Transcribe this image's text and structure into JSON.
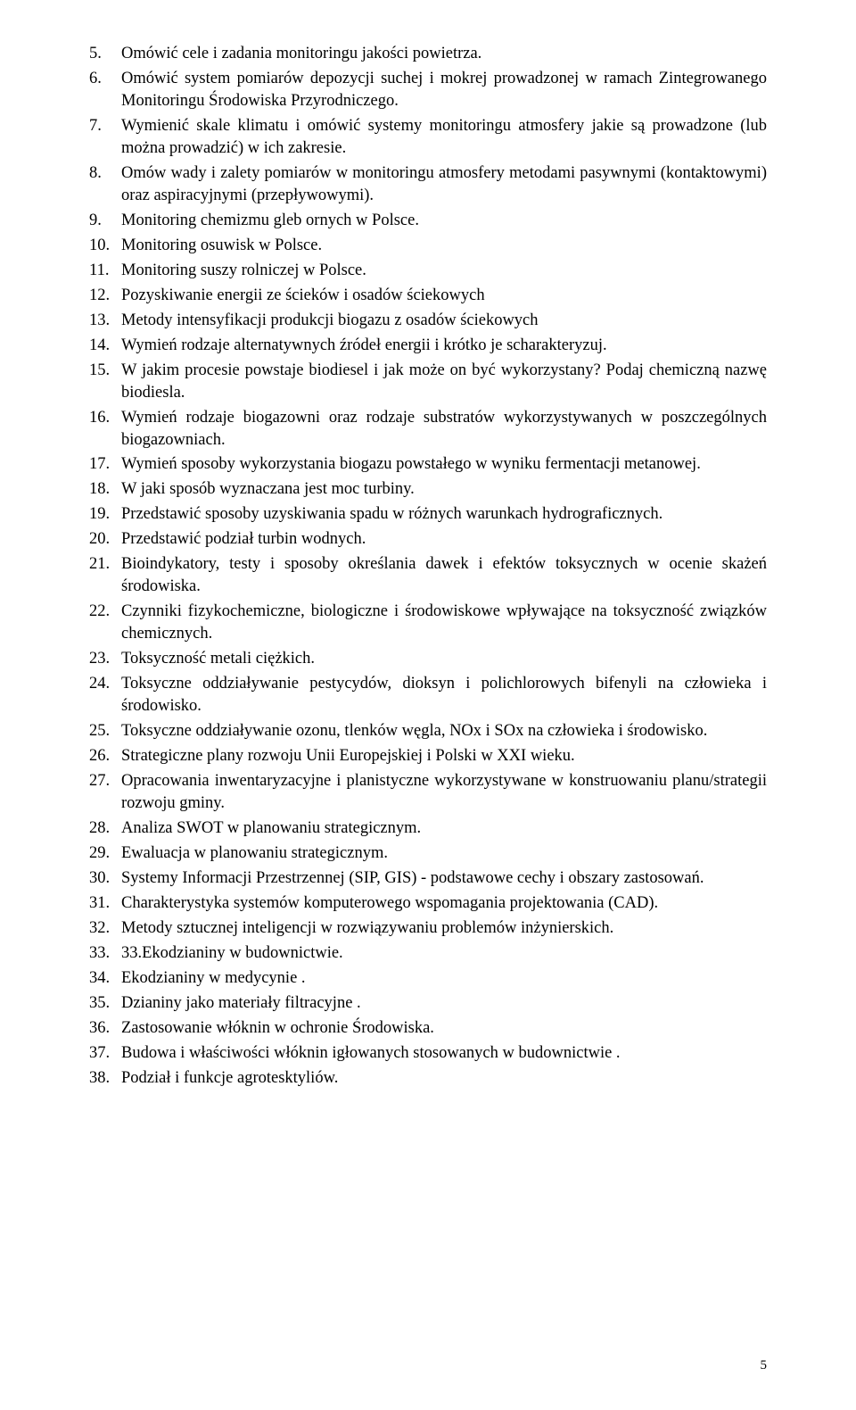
{
  "page_number": "5",
  "text_color": "#000000",
  "bg_color": "#ffffff",
  "font_family": "Times New Roman",
  "base_font_size_pt": 14,
  "items": [
    "Omówić cele i zadania monitoringu jakości powietrza.",
    "Omówić system pomiarów depozycji suchej i mokrej prowadzonej w ramach Zintegrowanego Monitoringu Środowiska Przyrodniczego.",
    "Wymienić skale klimatu i omówić systemy monitoringu atmosfery jakie są prowadzone (lub można prowadzić) w ich zakresie.",
    "Omów wady i zalety pomiarów w monitoringu atmosfery metodami pasywnymi (kontaktowymi) oraz aspiracyjnymi (przepływowymi).",
    "Monitoring chemizmu gleb ornych w Polsce.",
    "Monitoring osuwisk w Polsce.",
    "Monitoring suszy rolniczej w Polsce.",
    "Pozyskiwanie energii ze ścieków i osadów ściekowych",
    "Metody intensyfikacji produkcji biogazu z osadów ściekowych",
    "Wymień rodzaje alternatywnych źródeł energii i krótko je scharakteryzuj.",
    "W jakim procesie powstaje biodiesel i jak może on być wykorzystany? Podaj chemiczną nazwę biodiesla.",
    "Wymień rodzaje biogazowni oraz rodzaje substratów wykorzystywanych w poszczególnych biogazowniach.",
    "Wymień sposoby wykorzystania biogazu powstałego w wyniku fermentacji metanowej.",
    "W jaki sposób wyznaczana jest moc turbiny.",
    "Przedstawić sposoby uzyskiwania spadu w różnych warunkach hydrograficznych.",
    "Przedstawić podział turbin wodnych.",
    "Bioindykatory, testy i sposoby określania dawek i efektów toksycznych w ocenie skażeń środowiska.",
    "Czynniki fizykochemiczne, biologiczne i środowiskowe wpływające na toksyczność związków chemicznych.",
    "Toksyczność metali ciężkich.",
    "Toksyczne oddziaływanie pestycydów, dioksyn i polichlorowych bifenyli na człowieka i środowisko.",
    "Toksyczne oddziaływanie ozonu, tlenków węgla, NOx i SOx na człowieka i środowisko.",
    "Strategiczne plany rozwoju Unii Europejskiej i Polski w XXI wieku.",
    "Opracowania inwentaryzacyjne i planistyczne wykorzystywane w konstruowaniu planu/strategii rozwoju gminy.",
    "Analiza SWOT w planowaniu strategicznym.",
    "Ewaluacja w planowaniu strategicznym.",
    "Systemy Informacji Przestrzennej (SIP, GIS) - podstawowe cechy i obszary zastosowań.",
    "Charakterystyka systemów komputerowego wspomagania projektowania (CAD).",
    "Metody sztucznej inteligencji w rozwiązywaniu problemów inżynierskich.",
    "33.Ekodzianiny w budownictwie.",
    "Ekodzianiny w medycynie .",
    "Dzianiny jako materiały filtracyjne .",
    "Zastosowanie włóknin w ochronie Środowiska.",
    "Budowa i właściwości włóknin igłowanych stosowanych w budownictwie .",
    "Podział i funkcje agrotesktyliów."
  ]
}
